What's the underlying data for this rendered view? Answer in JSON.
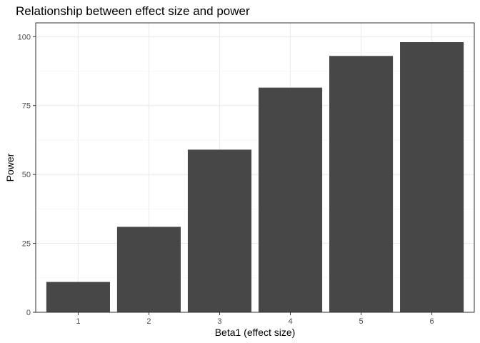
{
  "chart_data": {
    "type": "bar",
    "title": "Relationship between effect size and power",
    "xlabel": "Beta1 (effect size)",
    "ylabel": "Power",
    "categories": [
      "1",
      "2",
      "3",
      "4",
      "5",
      "6"
    ],
    "values": [
      11,
      31,
      59,
      81.5,
      93,
      98
    ],
    "ylim": [
      0,
      105
    ],
    "yticks": [
      0,
      25,
      50,
      75,
      100
    ],
    "grid": true,
    "legend": "none",
    "bar_color": "#474747",
    "grid_color": "#ebebeb",
    "panel_border_color": "#333333"
  }
}
